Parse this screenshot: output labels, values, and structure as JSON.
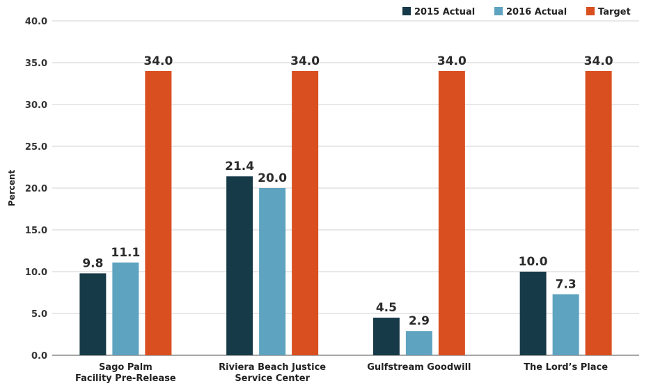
{
  "chart_data": {
    "type": "bar",
    "ylabel": "Percent",
    "ylim": [
      0,
      40
    ],
    "ytick_step": 5,
    "grid": true,
    "legend_position": "top-right",
    "categories": [
      [
        "Sago Palm",
        "Facility Pre-Release"
      ],
      [
        "Riviera Beach Justice",
        "Service Center"
      ],
      [
        "Gulfstream Goodwill"
      ],
      [
        "The Lord’s Place"
      ]
    ],
    "series": [
      {
        "name": "2015 Actual",
        "color": "#173a48",
        "values": [
          9.8,
          21.4,
          4.5,
          10.0
        ]
      },
      {
        "name": "2016 Actual",
        "color": "#5ea3bf",
        "values": [
          11.1,
          20.0,
          2.9,
          7.3
        ]
      },
      {
        "name": "Target",
        "color": "#d94f1f",
        "values": [
          34.0,
          34.0,
          34.0,
          34.0
        ]
      }
    ]
  }
}
